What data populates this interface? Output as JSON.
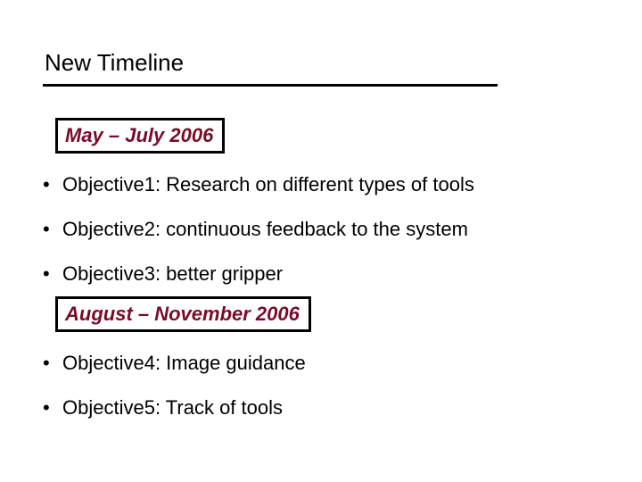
{
  "title": "New Timeline",
  "colors": {
    "text": "#000000",
    "period_text": "#7a0c27",
    "background": "#ffffff",
    "border": "#000000",
    "underline": "#000000"
  },
  "typography": {
    "title_fontsize": 26,
    "body_fontsize": 22,
    "period_italic": true,
    "period_bold": true,
    "font_family": "Arial"
  },
  "layout": {
    "slide_width": 720,
    "slide_height": 540,
    "underline_width": 510,
    "underline_thickness": 3,
    "box_border_thickness": 3
  },
  "periods": [
    {
      "label": "May – July 2006"
    },
    {
      "label": "August – November 2006"
    }
  ],
  "bullets_group1": [
    "Objective1: Research on different types of tools",
    "Objective2: continuous feedback to the system",
    "Objective3: better gripper"
  ],
  "bullets_group2": [
    "Objective4: Image guidance",
    "Objective5: Track of tools"
  ],
  "bullet_marker": "•"
}
